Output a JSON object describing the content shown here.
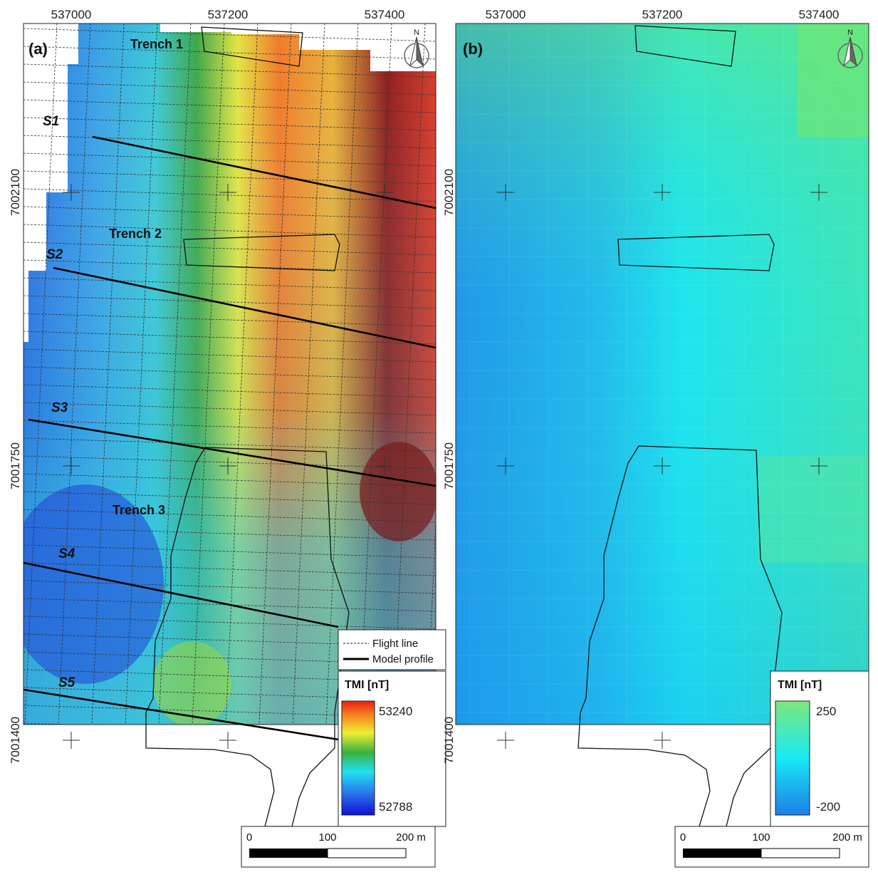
{
  "panels": [
    {
      "id": "a",
      "label": "(a)",
      "x_ticks": [
        "537000",
        "537200",
        "537400"
      ],
      "y_ticks": [
        "7002100",
        "7001750",
        "7001400"
      ],
      "trenches": [
        "Trench 1",
        "Trench 2",
        "Trench 3"
      ],
      "profiles": [
        "S1",
        "S2",
        "S3",
        "S4",
        "S5"
      ],
      "legend": {
        "flight_line": "Flight line",
        "model_profile": "Model profile"
      },
      "colorbar": {
        "title": "TMI [nT]",
        "max": "53240",
        "min": "52788"
      },
      "scalebar": [
        "0",
        "100",
        "200 m"
      ],
      "north": "N"
    },
    {
      "id": "b",
      "label": "(b)",
      "x_ticks": [
        "537000",
        "537200",
        "537400"
      ],
      "y_ticks": [
        "7002100",
        "7001750",
        "7001400"
      ],
      "colorbar": {
        "title": "TMI [nT]",
        "max": "250",
        "min": "-200"
      },
      "scalebar": [
        "0",
        "100",
        "200 m"
      ],
      "north": "N"
    }
  ],
  "colors": {
    "low": "#1e2bd8",
    "cyan": "#27d6e8",
    "green": "#3aa83a",
    "yellow": "#f1ee3c",
    "orange": "#f4741d",
    "red": "#8b1e1e"
  }
}
